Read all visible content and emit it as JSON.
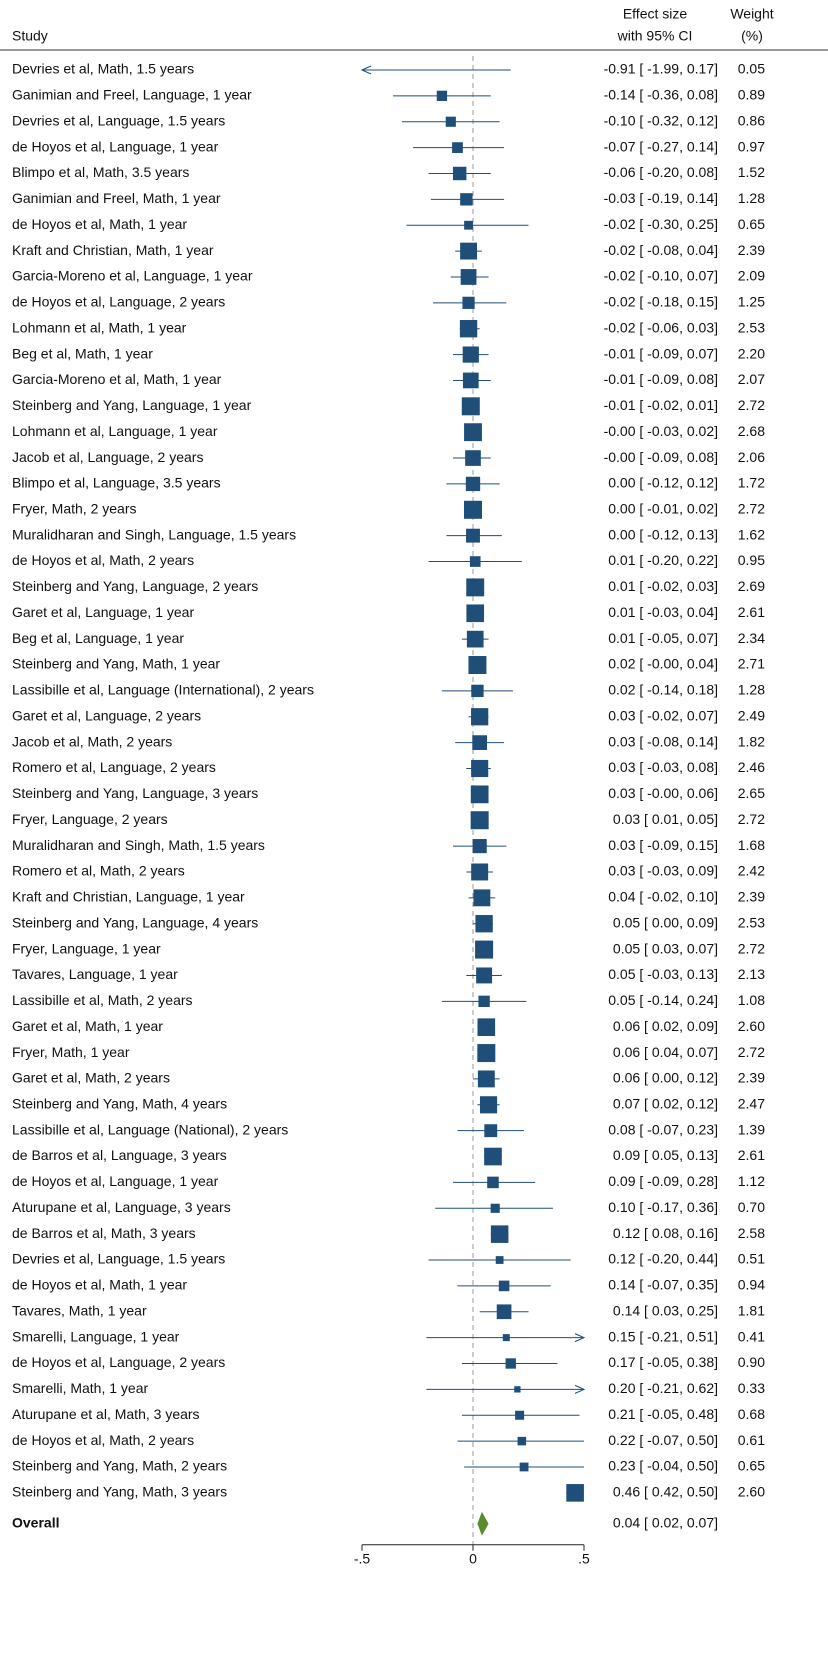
{
  "chart_data": {
    "type": "forest",
    "header": {
      "study": "Study",
      "effect_line1": "Effect size",
      "effect_line2": "with 95% CI",
      "weight_line1": "Weight",
      "weight_line2": "(%)"
    },
    "studies": [
      "Devries et al, Math, 1.5 years",
      "Ganimian and Freel, Language, 1 year",
      "Devries et al, Language, 1.5 years",
      "de Hoyos et al, Language, 1 year",
      "Blimpo et al, Math, 3.5 years",
      "Ganimian and Freel, Math, 1 year",
      "de Hoyos et al, Math, 1 year",
      "Kraft and Christian, Math, 1 year",
      "Garcia-Moreno et al, Language, 1 year",
      "de Hoyos et al, Language, 2 years",
      "Lohmann et al, Math, 1 year",
      "Beg et al, Math, 1 year",
      "Garcia-Moreno et al, Math, 1 year",
      "Steinberg and Yang, Language, 1 year",
      "Lohmann et al, Language, 1 year",
      "Jacob et al, Language, 2 years",
      "Blimpo et al, Language, 3.5 years",
      "Fryer, Math, 2 years",
      "Muralidharan and Singh, Language, 1.5 years",
      "de Hoyos et al, Math, 2 years",
      "Steinberg and Yang, Language, 2 years",
      "Garet et al, Language, 1 year",
      "Beg et al, Language, 1 year",
      "Steinberg and Yang, Math, 1 year",
      "Lassibille et al, Language (International), 2 years",
      "Garet et al, Language, 2 years",
      "Jacob et al, Math, 2 years",
      "Romero et al, Language, 2 years",
      "Steinberg and Yang, Language, 3 years",
      "Fryer, Language, 2 years",
      "Muralidharan and Singh, Math, 1.5 years",
      "Romero et al, Math, 2 years",
      "Kraft and Christian, Language, 1 year",
      "Steinberg and Yang, Language, 4 years",
      "Fryer, Language, 1 year",
      "Tavares, Language, 1 year",
      "Lassibille et al, Math, 2 years",
      "Garet et al, Math, 1 year",
      "Fryer, Math, 1 year",
      "Garet et al, Math, 2 years",
      "Steinberg and Yang, Math, 4 years",
      "Lassibille et al, Language (National), 2 years",
      "de Barros et al, Language, 3 years",
      "de Hoyos et al, Language, 1 year",
      "Aturupane et al, Language, 3 years",
      "de Barros et al, Math, 3 years",
      "Devries et al, Language, 1.5 years",
      "de Hoyos et al, Math, 1 year",
      "Tavares, Math, 1 year",
      "Smarelli, Language, 1 year",
      "de Hoyos et al, Language, 2 years",
      "Smarelli, Math, 1 year",
      "Aturupane et al, Math, 3 years",
      "de Hoyos et al, Math, 2 years",
      "Steinberg and Yang, Math, 2 years",
      "Steinberg and Yang, Math, 3 years"
    ],
    "effect": [
      -0.91,
      -0.14,
      -0.1,
      -0.07,
      -0.06,
      -0.03,
      -0.02,
      -0.02,
      -0.02,
      -0.02,
      -0.02,
      -0.01,
      -0.01,
      -0.01,
      -0.0,
      -0.0,
      0.0,
      0.0,
      0.0,
      0.01,
      0.01,
      0.01,
      0.01,
      0.02,
      0.02,
      0.03,
      0.03,
      0.03,
      0.03,
      0.03,
      0.03,
      0.03,
      0.04,
      0.05,
      0.05,
      0.05,
      0.05,
      0.06,
      0.06,
      0.06,
      0.07,
      0.08,
      0.09,
      0.09,
      0.1,
      0.12,
      0.12,
      0.14,
      0.14,
      0.15,
      0.17,
      0.2,
      0.21,
      0.22,
      0.23,
      0.46
    ],
    "lower": [
      -1.99,
      -0.36,
      -0.32,
      -0.27,
      -0.2,
      -0.19,
      -0.3,
      -0.08,
      -0.1,
      -0.18,
      -0.06,
      -0.09,
      -0.09,
      -0.02,
      -0.03,
      -0.09,
      -0.12,
      -0.01,
      -0.12,
      -0.2,
      -0.02,
      -0.03,
      -0.05,
      -0.0,
      -0.14,
      -0.02,
      -0.08,
      -0.03,
      -0.0,
      0.01,
      -0.09,
      -0.03,
      -0.02,
      0.0,
      0.03,
      -0.03,
      -0.14,
      0.02,
      0.04,
      0.0,
      0.02,
      -0.07,
      0.05,
      -0.09,
      -0.17,
      0.08,
      -0.2,
      -0.07,
      0.03,
      -0.21,
      -0.05,
      -0.21,
      -0.05,
      -0.07,
      -0.04,
      0.42
    ],
    "upper": [
      0.17,
      0.08,
      0.12,
      0.14,
      0.08,
      0.14,
      0.25,
      0.04,
      0.07,
      0.15,
      0.03,
      0.07,
      0.08,
      0.01,
      0.02,
      0.08,
      0.12,
      0.02,
      0.13,
      0.22,
      0.03,
      0.04,
      0.07,
      0.04,
      0.18,
      0.07,
      0.14,
      0.08,
      0.06,
      0.05,
      0.15,
      0.09,
      0.1,
      0.09,
      0.07,
      0.13,
      0.24,
      0.09,
      0.07,
      0.12,
      0.12,
      0.23,
      0.13,
      0.28,
      0.36,
      0.16,
      0.44,
      0.35,
      0.25,
      0.51,
      0.38,
      0.62,
      0.48,
      0.5,
      0.5,
      0.5
    ],
    "weight": [
      0.05,
      0.89,
      0.86,
      0.97,
      1.52,
      1.28,
      0.65,
      2.39,
      2.09,
      1.25,
      2.53,
      2.2,
      2.07,
      2.72,
      2.68,
      2.06,
      1.72,
      2.72,
      1.62,
      0.95,
      2.69,
      2.61,
      2.34,
      2.71,
      1.28,
      2.49,
      1.82,
      2.46,
      2.65,
      2.72,
      1.68,
      2.42,
      2.39,
      2.53,
      2.72,
      2.13,
      1.08,
      2.6,
      2.72,
      2.39,
      2.47,
      1.39,
      2.61,
      1.12,
      0.7,
      2.58,
      0.51,
      0.94,
      1.81,
      0.41,
      0.9,
      0.33,
      0.68,
      0.61,
      0.65,
      2.6
    ],
    "estimate_labels": [
      "-0.91 [ -1.99, 0.17]",
      "-0.14 [ -0.36, 0.08]",
      "-0.10 [ -0.32, 0.12]",
      "-0.07 [ -0.27, 0.14]",
      "-0.06 [ -0.20, 0.08]",
      "-0.03 [ -0.19, 0.14]",
      "-0.02 [ -0.30, 0.25]",
      "-0.02 [ -0.08, 0.04]",
      "-0.02 [ -0.10, 0.07]",
      "-0.02 [ -0.18, 0.15]",
      "-0.02 [ -0.06, 0.03]",
      "-0.01 [ -0.09, 0.07]",
      "-0.01 [ -0.09, 0.08]",
      "-0.01 [ -0.02, 0.01]",
      "-0.00 [ -0.03, 0.02]",
      "-0.00 [ -0.09, 0.08]",
      "0.00 [ -0.12, 0.12]",
      "0.00 [ -0.01, 0.02]",
      "0.00 [ -0.12, 0.13]",
      "0.01 [ -0.20, 0.22]",
      "0.01 [ -0.02, 0.03]",
      "0.01 [ -0.03, 0.04]",
      "0.01 [ -0.05, 0.07]",
      "0.02 [ -0.00, 0.04]",
      "0.02 [ -0.14, 0.18]",
      "0.03 [ -0.02, 0.07]",
      "0.03 [ -0.08, 0.14]",
      "0.03 [ -0.03, 0.08]",
      "0.03 [ -0.00, 0.06]",
      "0.03 [  0.01, 0.05]",
      "0.03 [ -0.09, 0.15]",
      "0.03 [ -0.03, 0.09]",
      "0.04 [ -0.02, 0.10]",
      "0.05 [  0.00, 0.09]",
      "0.05 [  0.03, 0.07]",
      "0.05 [ -0.03, 0.13]",
      "0.05 [ -0.14, 0.24]",
      "0.06 [  0.02, 0.09]",
      "0.06 [  0.04, 0.07]",
      "0.06 [  0.00, 0.12]",
      "0.07 [  0.02, 0.12]",
      "0.08 [ -0.07, 0.23]",
      "0.09 [  0.05, 0.13]",
      "0.09 [ -0.09, 0.28]",
      "0.10 [ -0.17, 0.36]",
      "0.12 [  0.08, 0.16]",
      "0.12 [ -0.20, 0.44]",
      "0.14 [ -0.07, 0.35]",
      "0.14 [  0.03, 0.25]",
      "0.15 [ -0.21, 0.51]",
      "0.17 [ -0.05, 0.38]",
      "0.20 [ -0.21, 0.62]",
      "0.21 [ -0.05, 0.48]",
      "0.22 [ -0.07, 0.50]",
      "0.23 [ -0.04, 0.50]",
      "0.46 [  0.42, 0.50]"
    ],
    "weight_labels": [
      "0.05",
      "0.89",
      "0.86",
      "0.97",
      "1.52",
      "1.28",
      "0.65",
      "2.39",
      "2.09",
      "1.25",
      "2.53",
      "2.20",
      "2.07",
      "2.72",
      "2.68",
      "2.06",
      "1.72",
      "2.72",
      "1.62",
      "0.95",
      "2.69",
      "2.61",
      "2.34",
      "2.71",
      "1.28",
      "2.49",
      "1.82",
      "2.46",
      "2.65",
      "2.72",
      "1.68",
      "2.42",
      "2.39",
      "2.53",
      "2.72",
      "2.13",
      "1.08",
      "2.60",
      "2.72",
      "2.39",
      "2.47",
      "1.39",
      "2.61",
      "1.12",
      "0.70",
      "2.58",
      "0.51",
      "0.94",
      "1.81",
      "0.41",
      "0.90",
      "0.33",
      "0.68",
      "0.61",
      "0.65",
      "2.60"
    ],
    "overall": {
      "name": "Overall",
      "effect": 0.04,
      "lower": 0.02,
      "upper": 0.07,
      "label": "0.04 [  0.02, 0.07]"
    },
    "xlim": [
      -0.5,
      0.5
    ],
    "xticks": [
      {
        "value": -0.5,
        "label": "-.5"
      },
      0,
      {
        "value": 0.5,
        "label": ".5"
      }
    ],
    "reference_line": 0,
    "color": "#1f4e79",
    "overall_color": "#5b8a2e"
  }
}
